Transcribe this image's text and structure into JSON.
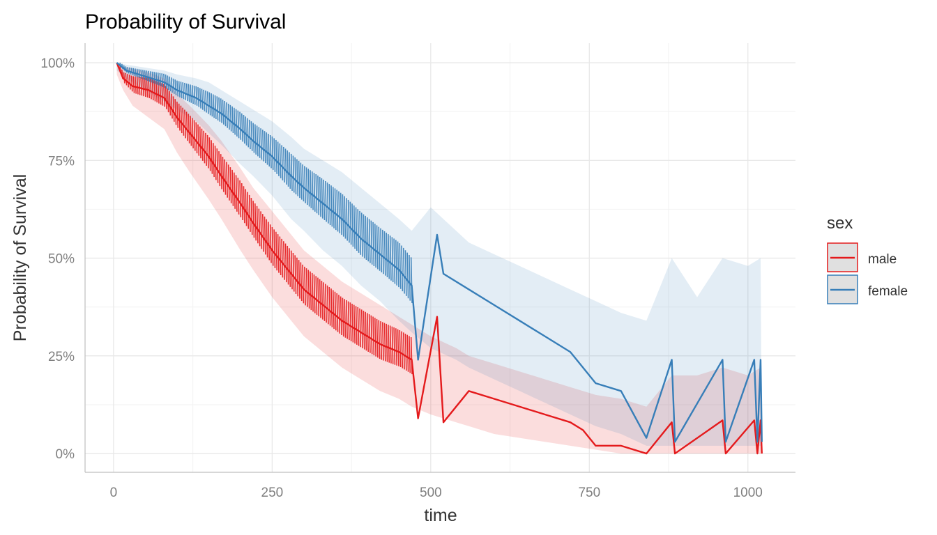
{
  "chart_data": {
    "type": "line",
    "title": "Probability of Survival",
    "xlabel": "time",
    "ylabel": "Probability of Survival",
    "xlim": [
      -45,
      1075
    ],
    "ylim": [
      -0.048,
      1.05
    ],
    "x_ticks": [
      {
        "value": 0,
        "label": "0"
      },
      {
        "value": 250,
        "label": "250"
      },
      {
        "value": 500,
        "label": "500"
      },
      {
        "value": 750,
        "label": "750"
      },
      {
        "value": 1000,
        "label": "1000"
      }
    ],
    "y_ticks": [
      {
        "value": 0,
        "label": "0%"
      },
      {
        "value": 0.25,
        "label": "25%"
      },
      {
        "value": 0.5,
        "label": "50%"
      },
      {
        "value": 0.75,
        "label": "75%"
      },
      {
        "value": 1,
        "label": "100%"
      }
    ],
    "grid": true,
    "legend": {
      "title": "sex",
      "position": "right"
    },
    "series": [
      {
        "name": "male",
        "color": "#E41A1C",
        "points": [
          [
            5,
            1.0
          ],
          [
            15,
            0.96
          ],
          [
            30,
            0.94
          ],
          [
            55,
            0.93
          ],
          [
            80,
            0.91
          ],
          [
            100,
            0.86
          ],
          [
            120,
            0.82
          ],
          [
            150,
            0.76
          ],
          [
            170,
            0.71
          ],
          [
            200,
            0.64
          ],
          [
            220,
            0.59
          ],
          [
            250,
            0.52
          ],
          [
            280,
            0.46
          ],
          [
            300,
            0.42
          ],
          [
            330,
            0.38
          ],
          [
            360,
            0.34
          ],
          [
            390,
            0.31
          ],
          [
            420,
            0.28
          ],
          [
            450,
            0.26
          ],
          [
            470,
            0.24
          ],
          [
            480,
            0.09
          ],
          [
            510,
            0.35
          ],
          [
            520,
            0.08
          ],
          [
            560,
            0.16
          ],
          [
            600,
            0.14
          ],
          [
            640,
            0.12
          ],
          [
            680,
            0.1
          ],
          [
            720,
            0.08
          ],
          [
            740,
            0.06
          ],
          [
            760,
            0.02
          ],
          [
            800,
            0.02
          ],
          [
            840,
            0.0
          ],
          [
            860,
            0.04
          ],
          [
            880,
            0.08
          ],
          [
            885,
            0.0
          ],
          [
            960,
            0.085
          ],
          [
            965,
            0.0
          ],
          [
            1010,
            0.085
          ],
          [
            1015,
            0.0
          ],
          [
            1020,
            0.085
          ],
          [
            1022,
            0.0
          ]
        ],
        "upper": [
          [
            5,
            1.0
          ],
          [
            15,
            0.99
          ],
          [
            30,
            0.985
          ],
          [
            55,
            0.975
          ],
          [
            80,
            0.96
          ],
          [
            100,
            0.92
          ],
          [
            120,
            0.89
          ],
          [
            150,
            0.84
          ],
          [
            170,
            0.8
          ],
          [
            200,
            0.73
          ],
          [
            220,
            0.68
          ],
          [
            250,
            0.62
          ],
          [
            280,
            0.56
          ],
          [
            300,
            0.52
          ],
          [
            330,
            0.48
          ],
          [
            360,
            0.44
          ],
          [
            390,
            0.41
          ],
          [
            420,
            0.38
          ],
          [
            450,
            0.35
          ],
          [
            470,
            0.33
          ],
          [
            500,
            0.3
          ],
          [
            540,
            0.27
          ],
          [
            560,
            0.25
          ],
          [
            600,
            0.23
          ],
          [
            640,
            0.21
          ],
          [
            680,
            0.19
          ],
          [
            720,
            0.17
          ],
          [
            760,
            0.15
          ],
          [
            800,
            0.14
          ],
          [
            840,
            0.12
          ],
          [
            880,
            0.2
          ],
          [
            920,
            0.2
          ],
          [
            960,
            0.22
          ],
          [
            1000,
            0.2
          ],
          [
            1020,
            0.22
          ]
        ],
        "lower": [
          [
            5,
            0.97
          ],
          [
            15,
            0.93
          ],
          [
            30,
            0.89
          ],
          [
            55,
            0.86
          ],
          [
            80,
            0.83
          ],
          [
            100,
            0.77
          ],
          [
            120,
            0.72
          ],
          [
            150,
            0.65
          ],
          [
            170,
            0.6
          ],
          [
            200,
            0.52
          ],
          [
            220,
            0.47
          ],
          [
            250,
            0.4
          ],
          [
            280,
            0.34
          ],
          [
            300,
            0.3
          ],
          [
            330,
            0.26
          ],
          [
            360,
            0.22
          ],
          [
            390,
            0.19
          ],
          [
            420,
            0.16
          ],
          [
            450,
            0.14
          ],
          [
            470,
            0.12
          ],
          [
            500,
            0.1
          ],
          [
            540,
            0.08
          ],
          [
            560,
            0.07
          ],
          [
            600,
            0.05
          ],
          [
            640,
            0.04
          ],
          [
            680,
            0.03
          ],
          [
            720,
            0.02
          ],
          [
            760,
            0.01
          ],
          [
            800,
            0.0
          ],
          [
            1022,
            0.0
          ]
        ]
      },
      {
        "name": "female",
        "color": "#377EB8",
        "points": [
          [
            5,
            1.0
          ],
          [
            20,
            0.98
          ],
          [
            40,
            0.97
          ],
          [
            60,
            0.96
          ],
          [
            80,
            0.95
          ],
          [
            100,
            0.93
          ],
          [
            130,
            0.91
          ],
          [
            150,
            0.89
          ],
          [
            170,
            0.87
          ],
          [
            200,
            0.83
          ],
          [
            220,
            0.8
          ],
          [
            250,
            0.76
          ],
          [
            280,
            0.71
          ],
          [
            300,
            0.68
          ],
          [
            330,
            0.64
          ],
          [
            360,
            0.6
          ],
          [
            390,
            0.55
          ],
          [
            420,
            0.51
          ],
          [
            450,
            0.47
          ],
          [
            470,
            0.43
          ],
          [
            480,
            0.24
          ],
          [
            510,
            0.56
          ],
          [
            520,
            0.46
          ],
          [
            560,
            0.42
          ],
          [
            600,
            0.38
          ],
          [
            640,
            0.34
          ],
          [
            680,
            0.3
          ],
          [
            720,
            0.26
          ],
          [
            740,
            0.22
          ],
          [
            760,
            0.18
          ],
          [
            800,
            0.16
          ],
          [
            840,
            0.04
          ],
          [
            880,
            0.24
          ],
          [
            885,
            0.03
          ],
          [
            960,
            0.24
          ],
          [
            965,
            0.03
          ],
          [
            1010,
            0.24
          ],
          [
            1015,
            0.03
          ],
          [
            1020,
            0.24
          ],
          [
            1022,
            0.03
          ]
        ],
        "upper": [
          [
            5,
            1.0
          ],
          [
            20,
            0.995
          ],
          [
            40,
            0.99
          ],
          [
            60,
            0.985
          ],
          [
            80,
            0.98
          ],
          [
            100,
            0.97
          ],
          [
            130,
            0.96
          ],
          [
            150,
            0.95
          ],
          [
            170,
            0.93
          ],
          [
            200,
            0.9
          ],
          [
            220,
            0.88
          ],
          [
            250,
            0.85
          ],
          [
            280,
            0.81
          ],
          [
            300,
            0.78
          ],
          [
            330,
            0.75
          ],
          [
            360,
            0.72
          ],
          [
            390,
            0.68
          ],
          [
            420,
            0.64
          ],
          [
            450,
            0.6
          ],
          [
            470,
            0.57
          ],
          [
            500,
            0.63
          ],
          [
            540,
            0.57
          ],
          [
            560,
            0.54
          ],
          [
            600,
            0.51
          ],
          [
            640,
            0.48
          ],
          [
            680,
            0.45
          ],
          [
            720,
            0.42
          ],
          [
            760,
            0.39
          ],
          [
            800,
            0.36
          ],
          [
            840,
            0.34
          ],
          [
            880,
            0.5
          ],
          [
            920,
            0.4
          ],
          [
            960,
            0.5
          ],
          [
            1000,
            0.48
          ],
          [
            1020,
            0.5
          ]
        ],
        "lower": [
          [
            5,
            0.98
          ],
          [
            20,
            0.96
          ],
          [
            40,
            0.94
          ],
          [
            60,
            0.92
          ],
          [
            80,
            0.9
          ],
          [
            100,
            0.88
          ],
          [
            130,
            0.85
          ],
          [
            150,
            0.82
          ],
          [
            170,
            0.79
          ],
          [
            200,
            0.74
          ],
          [
            220,
            0.71
          ],
          [
            250,
            0.66
          ],
          [
            280,
            0.6
          ],
          [
            300,
            0.57
          ],
          [
            330,
            0.52
          ],
          [
            360,
            0.48
          ],
          [
            390,
            0.43
          ],
          [
            420,
            0.39
          ],
          [
            450,
            0.34
          ],
          [
            470,
            0.31
          ],
          [
            500,
            0.27
          ],
          [
            540,
            0.24
          ],
          [
            560,
            0.22
          ],
          [
            600,
            0.19
          ],
          [
            640,
            0.16
          ],
          [
            680,
            0.13
          ],
          [
            720,
            0.1
          ],
          [
            760,
            0.07
          ],
          [
            800,
            0.05
          ],
          [
            840,
            0.02
          ],
          [
            1022,
            0.02
          ]
        ]
      }
    ]
  }
}
